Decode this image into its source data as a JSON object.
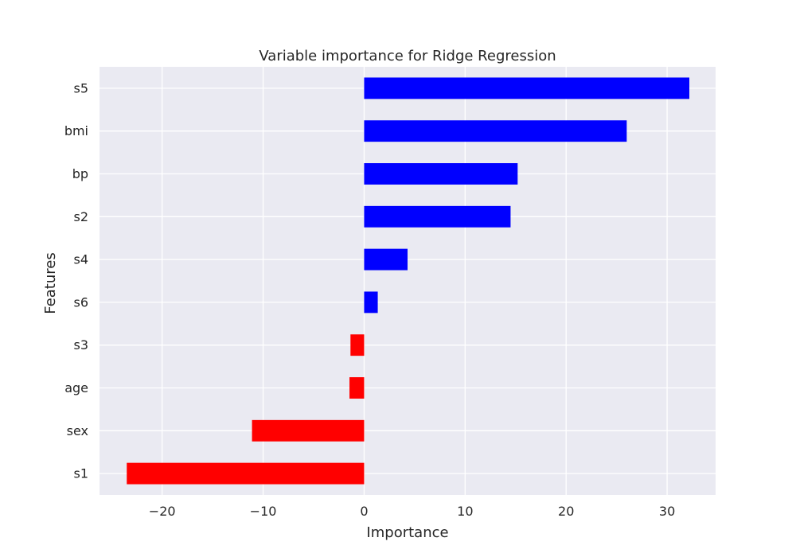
{
  "chart_data": {
    "type": "bar",
    "orientation": "horizontal",
    "title": "Variable importance for Ridge Regression",
    "xlabel": "Importance",
    "ylabel": "Features",
    "categories": [
      "s5",
      "bmi",
      "bp",
      "s2",
      "s4",
      "s6",
      "s3",
      "age",
      "sex",
      "s1"
    ],
    "values": [
      32.2,
      26.0,
      15.2,
      14.5,
      4.3,
      1.35,
      -1.35,
      -1.45,
      -11.1,
      -23.5
    ],
    "xlim": [
      -26.2,
      34.8
    ],
    "xticks": [
      -20,
      -10,
      0,
      10,
      20,
      30
    ],
    "xtick_labels": [
      "−20",
      "−10",
      "0",
      "10",
      "20",
      "30"
    ],
    "grid": true,
    "legend": "none",
    "colors": {
      "positive": "#0000ff",
      "negative": "#ff0000",
      "plot_background": "#eaeaf2",
      "grid": "#ffffff"
    }
  }
}
